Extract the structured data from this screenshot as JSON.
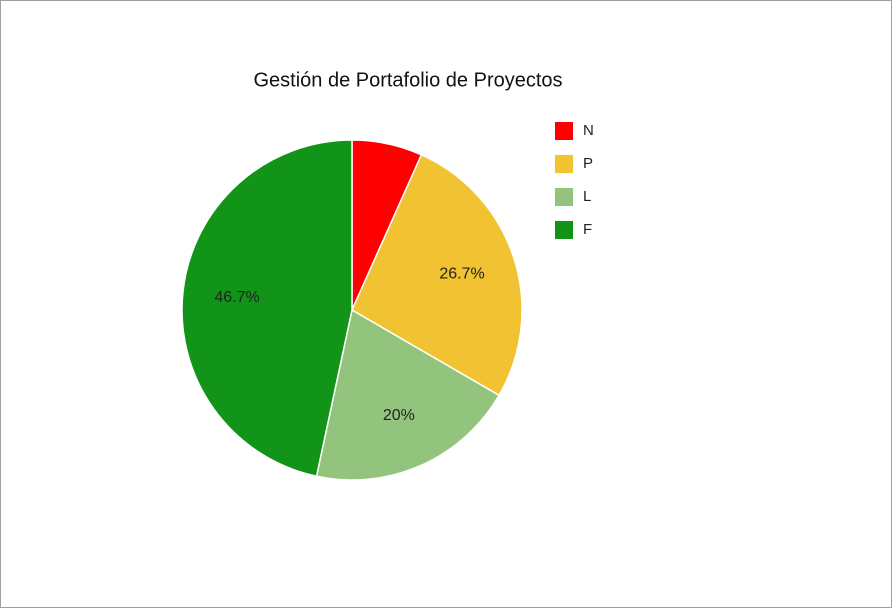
{
  "chart_data": {
    "type": "pie",
    "title": "Gestión de Portafolio de Proyectos",
    "categories": [
      "N",
      "P",
      "L",
      "F"
    ],
    "values": [
      6.7,
      26.7,
      20,
      46.7
    ],
    "value_labels": [
      null,
      "26.7%",
      "20%",
      "46.7%"
    ],
    "colors": [
      "#fe0000",
      "#f1c232",
      "#93c47d",
      "#129418"
    ],
    "legend": "right"
  }
}
